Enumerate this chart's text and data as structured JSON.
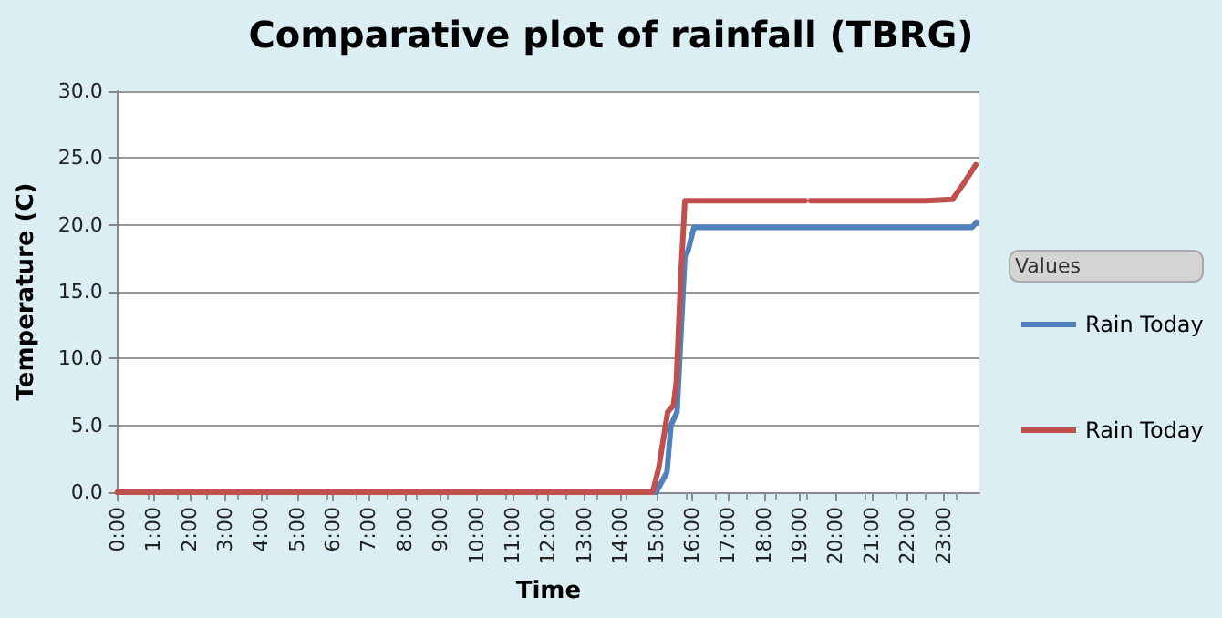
{
  "chart_data": {
    "type": "line",
    "title": "Comparative plot of rainfall (TBRG)",
    "xlabel": "Time",
    "ylabel": "Temperature (C)",
    "legend_title": "Values",
    "legend": "right",
    "grid": "y",
    "marker": "none",
    "line_style": "solid",
    "xlim": [
      0,
      24
    ],
    "xticks": [
      {
        "value": 0,
        "label": "0:00"
      },
      {
        "value": 1,
        "label": "1:00"
      },
      {
        "value": 2,
        "label": "2:00"
      },
      {
        "value": 3,
        "label": "3:00"
      },
      {
        "value": 4,
        "label": "4:00"
      },
      {
        "value": 5,
        "label": "5:00"
      },
      {
        "value": 6,
        "label": "6:00"
      },
      {
        "value": 7,
        "label": "7:00"
      },
      {
        "value": 8,
        "label": "8:00"
      },
      {
        "value": 9,
        "label": "9:00"
      },
      {
        "value": 10,
        "label": "10:00"
      },
      {
        "value": 11,
        "label": "11:00"
      },
      {
        "value": 12,
        "label": "12:00"
      },
      {
        "value": 13,
        "label": "13:00"
      },
      {
        "value": 14,
        "label": "14:00"
      },
      {
        "value": 15,
        "label": "15:00"
      },
      {
        "value": 16,
        "label": "16:00"
      },
      {
        "value": 17,
        "label": "17:00"
      },
      {
        "value": 18,
        "label": "18:00"
      },
      {
        "value": 19,
        "label": "19:00"
      },
      {
        "value": 20,
        "label": "20:00"
      },
      {
        "value": 21,
        "label": "21:00"
      },
      {
        "value": 22,
        "label": "22:00"
      },
      {
        "value": 23,
        "label": "23:00"
      }
    ],
    "ylim": [
      0,
      30
    ],
    "yticks": [
      {
        "value": 0,
        "label": "0.0"
      },
      {
        "value": 5,
        "label": "5.0"
      },
      {
        "value": 10,
        "label": "10.0"
      },
      {
        "value": 15,
        "label": "15.0"
      },
      {
        "value": 20,
        "label": "20.0"
      },
      {
        "value": 25,
        "label": "25.0"
      },
      {
        "value": 30,
        "label": "30.0"
      }
    ],
    "series": [
      {
        "name": "Rain Today",
        "color": "#4f81bd",
        "x": [
          0,
          15.0,
          15.3,
          15.41,
          15.58,
          15.8,
          15.88,
          16.05,
          23.79,
          23.92
        ],
        "values": [
          0,
          0,
          1.5,
          5.0,
          6.0,
          17.7,
          18.0,
          19.8,
          19.8,
          20.2
        ]
      },
      {
        "name": "Rain Today",
        "color": "#c0504d",
        "x": [
          0,
          14.9,
          15.07,
          15.32,
          15.48,
          15.56,
          15.69,
          15.8,
          19.15,
          19.22,
          19.3,
          22.5,
          23.25,
          23.59,
          23.9
        ],
        "values": [
          0,
          0,
          1.8,
          6.0,
          6.5,
          8.2,
          16.4,
          21.8,
          21.8,
          null,
          21.8,
          21.8,
          21.9,
          23.2,
          24.5
        ]
      }
    ]
  }
}
